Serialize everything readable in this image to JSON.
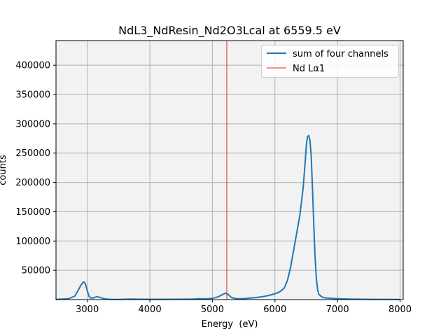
{
  "chart_data": {
    "type": "line",
    "title": "NdL3_NdResin_Nd2O3Lcal at 6559.5 eV",
    "xlabel": "Energy  (eV)",
    "ylabel": "counts",
    "xlim": [
      2500,
      8050
    ],
    "ylim": [
      0,
      442000
    ],
    "grid": true,
    "legend": "top-right",
    "x_ticks": [
      3000,
      4000,
      5000,
      6000,
      7000,
      8000
    ],
    "y_ticks": [
      50000,
      100000,
      150000,
      200000,
      250000,
      300000,
      350000,
      400000
    ],
    "x_tick_labels": [
      "3000",
      "4000",
      "5000",
      "6000",
      "7000",
      "8000"
    ],
    "y_tick_labels": [
      "50000",
      "100000",
      "150000",
      "200000",
      "250000",
      "300000",
      "350000",
      "400000"
    ],
    "series": [
      {
        "name": "sum of four channels",
        "color": "#1f77b4",
        "x": [
          2500,
          2700,
          2800,
          2850,
          2900,
          2930,
          2950,
          2970,
          3000,
          3030,
          3060,
          3100,
          3150,
          3200,
          3250,
          3300,
          3400,
          3500,
          3700,
          4000,
          4500,
          4700,
          4800,
          4900,
          5000,
          5100,
          5150,
          5200,
          5220,
          5250,
          5300,
          5350,
          5400,
          5500,
          5600,
          5700,
          5800,
          5900,
          6000,
          6050,
          6100,
          6150,
          6200,
          6250,
          6300,
          6350,
          6400,
          6450,
          6480,
          6500,
          6520,
          6540,
          6560,
          6580,
          6600,
          6620,
          6640,
          6660,
          6680,
          6700,
          6750,
          6800,
          6900,
          7000,
          7200,
          7500,
          8000
        ],
        "y": [
          300,
          1500,
          6000,
          15000,
          25000,
          29000,
          30000,
          27000,
          15000,
          5000,
          2500,
          3000,
          5000,
          4000,
          2000,
          800,
          400,
          300,
          800,
          500,
          600,
          1000,
          1500,
          1200,
          2000,
          5000,
          8000,
          10500,
          10800,
          9000,
          4000,
          2000,
          1500,
          1700,
          2500,
          3500,
          5000,
          7000,
          10000,
          12000,
          15000,
          20000,
          33000,
          55000,
          85000,
          115000,
          145000,
          190000,
          230000,
          262000,
          278000,
          280000,
          272000,
          245000,
          190000,
          130000,
          75000,
          38000,
          18000,
          9000,
          4500,
          3000,
          2000,
          1500,
          800,
          500,
          300
        ]
      },
      {
        "name": "Nd Lα1",
        "color": "#d62728",
        "type": "vline",
        "x": 5230
      }
    ]
  }
}
